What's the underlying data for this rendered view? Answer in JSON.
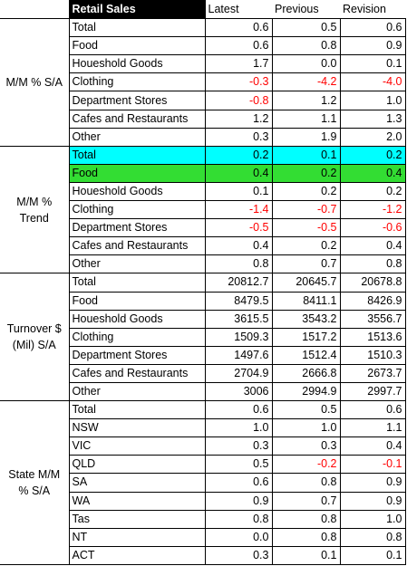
{
  "header": {
    "category": "Retail Sales",
    "columns": [
      "Latest",
      "Previous",
      "Revision"
    ]
  },
  "sections": [
    {
      "label": "M/M % S/A",
      "rows": [
        {
          "name": "Total",
          "values": [
            "0.6",
            "0.5",
            "0.6"
          ]
        },
        {
          "name": "Food",
          "values": [
            "0.6",
            "0.8",
            "0.9"
          ]
        },
        {
          "name": "Houeshold Goods",
          "values": [
            "1.7",
            "0.0",
            "0.1"
          ]
        },
        {
          "name": "Clothing",
          "values": [
            "-0.3",
            "-4.2",
            "-4.0"
          ]
        },
        {
          "name": "Department Stores",
          "values": [
            "-0.8",
            "1.2",
            "1.0"
          ]
        },
        {
          "name": "Cafes and Restaurants",
          "values": [
            "1.2",
            "1.1",
            "1.3"
          ]
        },
        {
          "name": "Other",
          "values": [
            "0.3",
            "1.9",
            "2.0"
          ]
        }
      ]
    },
    {
      "label": "M/M % Trend",
      "rows": [
        {
          "name": "Total",
          "values": [
            "0.2",
            "0.1",
            "0.2"
          ],
          "highlight": "#00ffff"
        },
        {
          "name": "Food",
          "values": [
            "0.4",
            "0.2",
            "0.4"
          ],
          "highlight": "#33dd33"
        },
        {
          "name": "Houeshold Goods",
          "values": [
            "0.1",
            "0.2",
            "0.2"
          ]
        },
        {
          "name": "Clothing",
          "values": [
            "-1.4",
            "-0.7",
            "-1.2"
          ]
        },
        {
          "name": "Department Stores",
          "values": [
            "-0.5",
            "-0.5",
            "-0.6"
          ]
        },
        {
          "name": "Cafes and Restaurants",
          "values": [
            "0.4",
            "0.2",
            "0.4"
          ]
        },
        {
          "name": "Other",
          "values": [
            "0.8",
            "0.7",
            "0.8"
          ]
        }
      ]
    },
    {
      "label": "Turnover $ (Mil) S/A",
      "rows": [
        {
          "name": "Total",
          "values": [
            "20812.7",
            "20645.7",
            "20678.8"
          ]
        },
        {
          "name": "Food",
          "values": [
            "8479.5",
            "8411.1",
            "8426.9"
          ]
        },
        {
          "name": "Houeshold Goods",
          "values": [
            "3615.5",
            "3543.2",
            "3556.7"
          ]
        },
        {
          "name": "Clothing",
          "values": [
            "1509.3",
            "1517.2",
            "1513.6"
          ]
        },
        {
          "name": "Department Stores",
          "values": [
            "1497.6",
            "1512.4",
            "1510.3"
          ]
        },
        {
          "name": "Cafes and Restaurants",
          "values": [
            "2704.9",
            "2666.8",
            "2673.7"
          ]
        },
        {
          "name": "Other",
          "values": [
            "3006",
            "2994.9",
            "2997.7"
          ]
        }
      ]
    },
    {
      "label": "State M/M % S/A",
      "rows": [
        {
          "name": "Total",
          "values": [
            "0.6",
            "0.5",
            "0.6"
          ]
        },
        {
          "name": "NSW",
          "values": [
            "1.0",
            "1.0",
            "1.1"
          ]
        },
        {
          "name": "VIC",
          "values": [
            "0.3",
            "0.3",
            "0.4"
          ]
        },
        {
          "name": "QLD",
          "values": [
            "0.5",
            "-0.2",
            "-0.1"
          ]
        },
        {
          "name": "SA",
          "values": [
            "0.6",
            "0.8",
            "0.9"
          ]
        },
        {
          "name": "WA",
          "values": [
            "0.9",
            "0.7",
            "0.9"
          ]
        },
        {
          "name": "Tas",
          "values": [
            "0.8",
            "0.8",
            "1.0"
          ]
        },
        {
          "name": "NT",
          "values": [
            "0.0",
            "0.8",
            "0.8"
          ]
        },
        {
          "name": "ACT",
          "values": [
            "0.3",
            "0.1",
            "0.1"
          ]
        }
      ]
    }
  ],
  "colors": {
    "negative": "#ff0000",
    "header_bg": "#000000",
    "header_text": "#ffffff"
  }
}
